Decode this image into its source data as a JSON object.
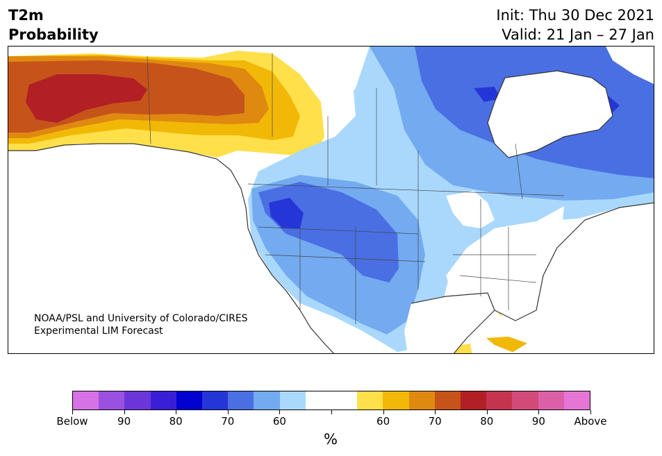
{
  "title": {
    "line1": "T2m",
    "line2": "Probability"
  },
  "dates": {
    "init": "Init: Thu 30 Dec 2021",
    "valid": "Valid: 21 Jan – 27 Jan"
  },
  "credit": {
    "line1": "NOAA/PSL and University of Colorado/CIRES",
    "line2": "Experimental LIM Forecast"
  },
  "colorbar": {
    "unit": "%",
    "colors": [
      "#d672e6",
      "#9b51e0",
      "#6a36d9",
      "#3a1fd6",
      "#0000d0",
      "#2536d8",
      "#4a6fe3",
      "#73aaf0",
      "#a9d8fc",
      "#ffffff",
      "#ffffff",
      "#ffe04a",
      "#f2b807",
      "#df8911",
      "#c6541a",
      "#b21f25",
      "#c4344f",
      "#d24b78",
      "#dc60a8",
      "#e576d6"
    ],
    "labels": [
      "Below",
      "90",
      "80",
      "70",
      "60",
      "",
      "60",
      "70",
      "80",
      "90",
      "Above"
    ]
  },
  "map": {
    "region": "North America",
    "palette": {
      "warm_light": "#ffe04a",
      "warm_mid": "#f2b807",
      "warm_orange": "#df8911",
      "warm_rust": "#c6541a",
      "warm_red": "#b21f25",
      "cold_light": "#a9d8fc",
      "cold_mid": "#73aaf0",
      "cold_blue": "#4a6fe3",
      "cold_deep": "#2536d8",
      "land_line": "#333333"
    }
  }
}
